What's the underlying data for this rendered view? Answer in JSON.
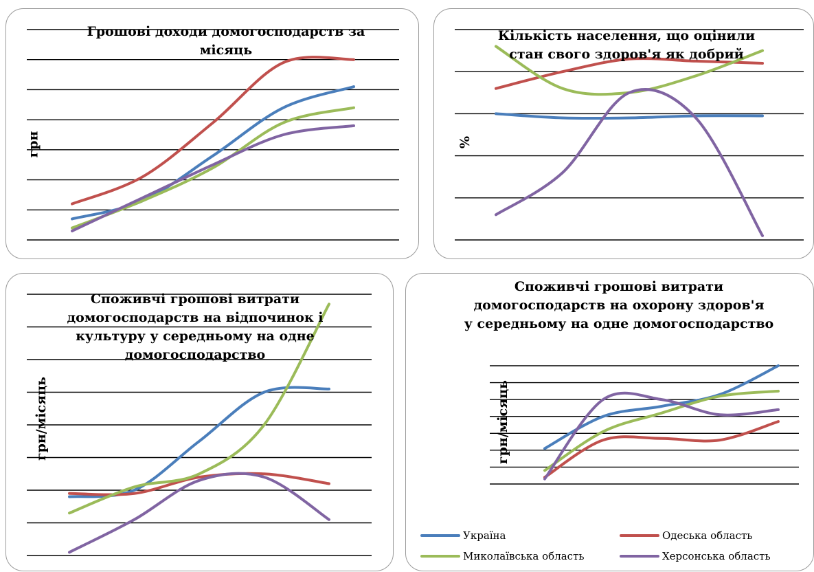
{
  "colors": {
    "ukraine": "#4a7ebb",
    "odesa": "#c0504d",
    "mykolaiv": "#9bbb59",
    "kherson": "#8064a2",
    "grid": "#000000"
  },
  "legend": {
    "ukraine": "Україна",
    "odesa": "Одеська область",
    "mykolaiv": "Миколаївська область",
    "kherson": "Херсонська область"
  },
  "chart_data": [
    {
      "type": "line",
      "title_lines": [
        "Грошові доходи домогосподарств за",
        "місяць"
      ],
      "ylabel": "грн",
      "ylim": [
        0,
        7
      ],
      "grid": true,
      "x": [
        1,
        2,
        3,
        4,
        5
      ],
      "series": [
        {
          "name": "Україна",
          "key": "ukraine",
          "values": [
            0.7,
            1.3,
            2.8,
            4.4,
            5.1
          ]
        },
        {
          "name": "Одеська область",
          "key": "odesa",
          "values": [
            1.2,
            2.1,
            3.9,
            5.9,
            6.0
          ]
        },
        {
          "name": "Миколаївська область",
          "key": "mykolaiv",
          "values": [
            0.4,
            1.3,
            2.4,
            3.9,
            4.4
          ]
        },
        {
          "name": "Херсонська область",
          "key": "kherson",
          "values": [
            0.3,
            1.4,
            2.5,
            3.5,
            3.8
          ]
        }
      ]
    },
    {
      "type": "line",
      "title_lines": [
        "Кількість населення, що оцінили",
        "стан свого здоров'я як добрий"
      ],
      "ylabel": "%",
      "ylim": [
        0,
        5
      ],
      "grid": true,
      "x": [
        1,
        2,
        3,
        4,
        5
      ],
      "series": [
        {
          "name": "Україна",
          "key": "ukraine",
          "values": [
            3.0,
            2.9,
            2.9,
            2.95,
            2.95
          ]
        },
        {
          "name": "Одеська область",
          "key": "odesa",
          "values": [
            3.6,
            4.0,
            4.3,
            4.25,
            4.2
          ]
        },
        {
          "name": "Миколаївська область",
          "key": "mykolaiv",
          "values": [
            4.6,
            3.6,
            3.5,
            3.9,
            4.5
          ]
        },
        {
          "name": "Херсонська область",
          "key": "kherson",
          "values": [
            0.6,
            1.6,
            3.5,
            2.9,
            0.1
          ]
        }
      ]
    },
    {
      "type": "line",
      "title_lines": [
        "Споживчі грошові витрати",
        "домогосподарств на відпочинок і",
        "культуру у середньому на одне",
        "домогосподарство"
      ],
      "ylabel": "грн/місяць",
      "ylim": [
        0,
        8
      ],
      "grid": true,
      "x": [
        1,
        2,
        3,
        4,
        5
      ],
      "series": [
        {
          "name": "Україна",
          "key": "ukraine",
          "values": [
            1.8,
            2.0,
            3.5,
            5.0,
            5.1
          ]
        },
        {
          "name": "Одеська область",
          "key": "odesa",
          "values": [
            1.9,
            1.9,
            2.4,
            2.5,
            2.2
          ]
        },
        {
          "name": "Миколаївська область",
          "key": "mykolaiv",
          "values": [
            1.3,
            2.1,
            2.5,
            4.0,
            7.7
          ]
        },
        {
          "name": "Херсонська область",
          "key": "kherson",
          "values": [
            0.1,
            1.1,
            2.3,
            2.4,
            1.1
          ]
        }
      ]
    },
    {
      "type": "line",
      "title_lines": [
        "Споживчі грошові витрати",
        "домогосподарств на охорону здоров'я",
        "у середньому на одне домогосподарство"
      ],
      "ylabel": "грн/місяць",
      "ylim": [
        0,
        7
      ],
      "grid": true,
      "x": [
        1,
        2,
        3,
        4,
        5
      ],
      "series": [
        {
          "name": "Україна",
          "key": "ukraine",
          "values": [
            2.1,
            4.0,
            4.6,
            5.3,
            7.0
          ]
        },
        {
          "name": "Одеська область",
          "key": "odesa",
          "values": [
            0.4,
            2.6,
            2.7,
            2.6,
            3.7
          ]
        },
        {
          "name": "Миколаївська область",
          "key": "mykolaiv",
          "values": [
            0.8,
            3.1,
            4.2,
            5.2,
            5.5
          ]
        },
        {
          "name": "Херсонська область",
          "key": "kherson",
          "values": [
            0.3,
            5.0,
            5.0,
            4.1,
            4.4
          ]
        }
      ]
    }
  ]
}
